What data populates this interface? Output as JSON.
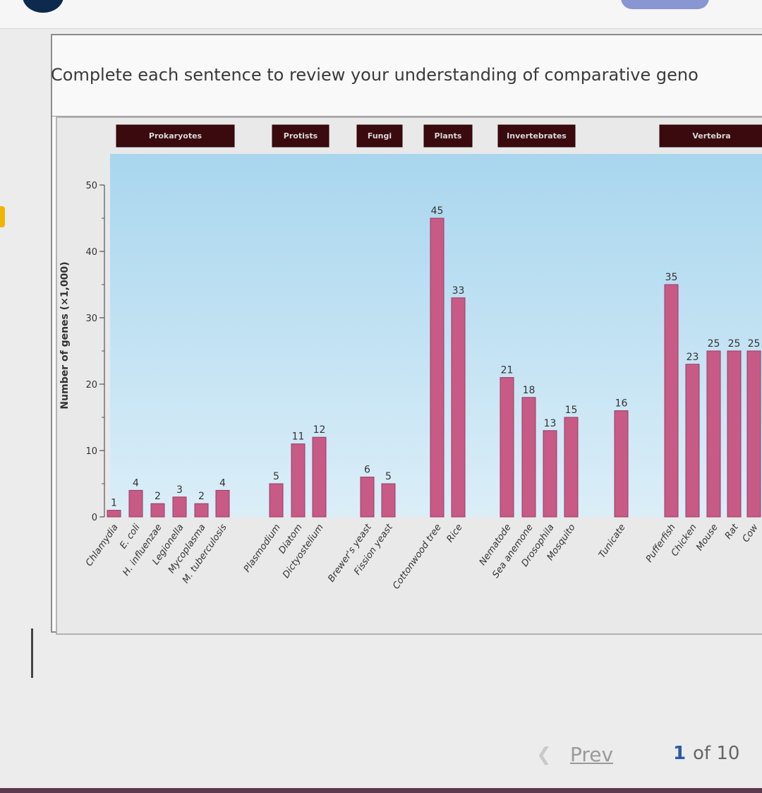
{
  "instruction": "Complete each sentence to review your understanding of comparative geno",
  "pagination": {
    "prev_label": "Prev",
    "current_page": "1",
    "of_text": "of 10"
  },
  "colors": {
    "bar": "#c85a86",
    "bar_stroke": "#9b3a64",
    "plot_bg_top": "#a9d6ee",
    "plot_bg_bottom": "#dbeef8",
    "group_bg": "#3a0a0e"
  },
  "chart_data": {
    "type": "bar",
    "title": "",
    "xlabel": "",
    "ylabel": "Number of genes (×1,000)",
    "ylim": [
      0,
      50
    ],
    "yticks": [
      0,
      10,
      20,
      30,
      40,
      50
    ],
    "groups": [
      {
        "name": "Prokaryotes",
        "categories": [
          "Chlamydia",
          "E. coli",
          "H. influenzae",
          "Legionella",
          "Mycoplasma",
          "M. tuberculosis"
        ]
      },
      {
        "name": "Protists",
        "categories": [
          "Plasmodium",
          "Diatom",
          "Dictyostelium"
        ]
      },
      {
        "name": "Fungi",
        "categories": [
          "Brewer's yeast",
          "Fission yeast"
        ]
      },
      {
        "name": "Plants",
        "categories": [
          "Cottonwood tree",
          "Rice"
        ]
      },
      {
        "name": "Invertebrates",
        "categories": [
          "Nematode",
          "Sea anemone",
          "Drosophila",
          "Mosquito",
          "Tunicate"
        ]
      },
      {
        "name": "Vertebra",
        "categories": [
          "Pufferfish",
          "Chicken",
          "Mouse",
          "Rat",
          "Cow"
        ]
      }
    ],
    "categories": [
      "Chlamydia",
      "E. coli",
      "H. influenzae",
      "Legionella",
      "Mycoplasma",
      "M. tuberculosis",
      "Plasmodium",
      "Diatom",
      "Dictyostelium",
      "Brewer's yeast",
      "Fission yeast",
      "Cottonwood tree",
      "Rice",
      "Nematode",
      "Sea anemone",
      "Drosophila",
      "Mosquito",
      "Tunicate",
      "Pufferfish",
      "Chicken",
      "Mouse",
      "Rat",
      "Cow"
    ],
    "values": [
      1,
      4,
      2,
      3,
      2,
      4,
      5,
      11,
      12,
      6,
      5,
      45,
      33,
      21,
      18,
      13,
      15,
      16,
      35,
      23,
      25,
      25,
      25
    ],
    "grid": false,
    "legend": "none"
  }
}
